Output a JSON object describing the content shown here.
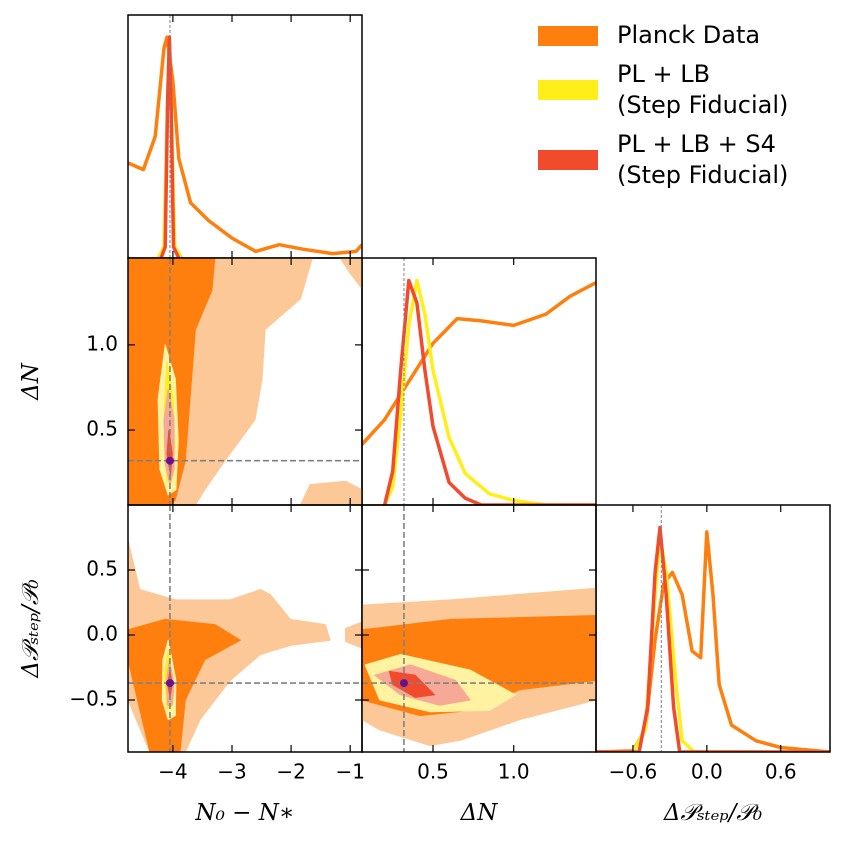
{
  "chart_data": {
    "type": "corner",
    "legend": "upper right",
    "density_ylim": [
      0,
      1.1
    ],
    "fiducial_color": "#6a0f8e",
    "series": [
      {
        "name": "Planck Data",
        "color": "#ff7f0e",
        "light_color": "#fdc898"
      },
      {
        "name": "PL + LB\n(Step Fiducial)",
        "color": "#ffee1a",
        "light_color": "#fff2a0"
      },
      {
        "name": "PL + LB + S4\n(Step Fiducial)",
        "color": "#f24a2d",
        "light_color": "#f6a996"
      }
    ],
    "parameters": [
      {
        "label": "N₀ − N∗",
        "lim": [
          -4.76,
          -0.8
        ],
        "fiducial": -4.05,
        "xticks": [
          {
            "value": -4,
            "label": "−4"
          },
          {
            "value": -3,
            "label": "−3"
          },
          {
            "value": -2,
            "label": "−2"
          },
          {
            "value": -1,
            "label": "−1"
          }
        ]
      },
      {
        "label": "ΔN",
        "lim": [
          0.06,
          1.51
        ],
        "fiducial": 0.32,
        "xticks": [
          0.5,
          {
            "value": 1,
            "label": "1.0"
          }
        ],
        "yticks": [
          0.5,
          {
            "value": 1,
            "label": "1.0"
          }
        ]
      },
      {
        "label": "Δ𝒫ₛₜₑₚ/𝒫₀",
        "lim": [
          -0.9,
          1.0
        ],
        "fiducial": -0.37,
        "xticks": [
          {
            "value": -0.6,
            "label": "−0.6"
          },
          {
            "value": 0,
            "label": "0.0"
          },
          0.6
        ],
        "yticks": [
          0.5,
          {
            "value": 0,
            "label": "0.0"
          },
          {
            "value": -0.5,
            "label": "−0.5"
          }
        ]
      }
    ],
    "diagonals": [
      {
        "curves": [
          {
            "x": [
              -4.76,
              -4.5,
              -4.3,
              -4.15,
              -4.1,
              -4.0,
              -3.9,
              -3.7,
              -3.4,
              -3.0,
              -2.6,
              -2.2,
              -1.8,
              -1.3,
              -0.9,
              -0.8
            ],
            "y": [
              0.43,
              0.4,
              0.55,
              0.95,
              1.0,
              0.8,
              0.45,
              0.25,
              0.17,
              0.09,
              0.03,
              0.06,
              0.04,
              0.02,
              0.03,
              0.06
            ]
          },
          {
            "x": [
              -4.25,
              -4.15,
              -4.1,
              -4.06,
              -4.02,
              -3.97,
              -3.85
            ],
            "y": [
              0,
              0.05,
              0.6,
              1.0,
              0.6,
              0.05,
              0
            ]
          },
          {
            "x": [
              -4.2,
              -4.13,
              -4.09,
              -4.06,
              -4.03,
              -3.99,
              -3.9
            ],
            "y": [
              0,
              0.05,
              0.7,
              1.0,
              0.7,
              0.05,
              0
            ]
          }
        ]
      },
      {
        "curves": [
          {
            "x": [
              0.06,
              0.2,
              0.35,
              0.5,
              0.65,
              0.8,
              1.0,
              1.2,
              1.35,
              1.51
            ],
            "y": [
              0.27,
              0.38,
              0.55,
              0.72,
              0.83,
              0.82,
              0.8,
              0.85,
              0.93,
              0.99
            ]
          },
          {
            "x": [
              0.2,
              0.25,
              0.3,
              0.35,
              0.4,
              0.45,
              0.5,
              0.6,
              0.7,
              0.85,
              1.0,
              1.2,
              1.51
            ],
            "y": [
              0,
              0.08,
              0.4,
              0.8,
              1.0,
              0.85,
              0.6,
              0.3,
              0.14,
              0.05,
              0.02,
              0,
              0
            ]
          },
          {
            "x": [
              0.2,
              0.25,
              0.3,
              0.35,
              0.4,
              0.45,
              0.5,
              0.6,
              0.7,
              0.8,
              1.51
            ],
            "y": [
              0,
              0.15,
              0.6,
              1.0,
              0.9,
              0.6,
              0.35,
              0.1,
              0.03,
              0,
              0
            ]
          }
        ]
      },
      {
        "curves": [
          {
            "x": [
              -0.9,
              -0.6,
              -0.5,
              -0.42,
              -0.35,
              -0.28,
              -0.2,
              -0.12,
              -0.05,
              0.0,
              0.05,
              0.1,
              0.2,
              0.4,
              0.6,
              1.0
            ],
            "y": [
              0,
              0.005,
              0.1,
              0.5,
              0.75,
              0.8,
              0.7,
              0.45,
              0.42,
              0.98,
              0.7,
              0.3,
              0.12,
              0.05,
              0.02,
              0
            ]
          },
          {
            "x": [
              -0.9,
              -0.6,
              -0.5,
              -0.42,
              -0.38,
              -0.33,
              -0.25,
              -0.2,
              -0.1,
              1.0
            ],
            "y": [
              0,
              0,
              0.1,
              0.7,
              0.95,
              0.8,
              0.3,
              0.05,
              0,
              0
            ]
          },
          {
            "x": [
              -0.9,
              -0.55,
              -0.48,
              -0.42,
              -0.38,
              -0.33,
              -0.27,
              -0.22,
              1.0
            ],
            "y": [
              0,
              0,
              0.2,
              0.8,
              1.0,
              0.7,
              0.2,
              0,
              0
            ]
          }
        ]
      }
    ],
    "pairs": [
      {
        "params": [
          0,
          1
        ],
        "contours": [
          [
            [
              {
                "x": [
                  -4.76,
                  -1.64,
                  -1.84,
                  -2.44,
                  -2.49,
                  -2.61,
                  -3.12,
                  -3.46,
                  -3.62,
                  -4.76
                ],
                "y": [
                  1.51,
                  1.51,
                  1.27,
                  1.09,
                  0.8,
                  0.56,
                  0.32,
                  0.15,
                  0.06,
                  0.06
                ]
              },
              {
                "x": [
                  -1.17,
                  -0.8,
                  -0.8,
                  -1.0
                ],
                "y": [
                  1.51,
                  1.51,
                  1.33,
                  1.42
                ]
              },
              {
                "x": [
                  -1.84,
                  -1.68,
                  -1.08,
                  -0.8,
                  -0.8
                ],
                "y": [
                  0.06,
                  0.18,
                  0.2,
                  0.15,
                  0.06
                ]
              }
            ],
            [
              {
                "x": [
                  -4.76,
                  -3.29,
                  -3.34,
                  -3.62,
                  -3.71,
                  -3.79,
                  -3.96,
                  -4.05,
                  -4.76
                ],
                "y": [
                  1.51,
                  1.51,
                  1.32,
                  1.09,
                  0.68,
                  0.32,
                  0.09,
                  0.06,
                  0.06
                ]
              }
            ]
          ],
          [
            [
              {
                "x": [
                  -4.13,
                  -3.96,
                  -3.91,
                  -3.95,
                  -4.08,
                  -4.22,
                  -4.25
                ],
                "y": [
                  1.0,
                  0.8,
                  0.44,
                  0.15,
                  0.12,
                  0.27,
                  0.68
                ]
              }
            ],
            [
              {
                "x": [
                  -4.1,
                  -4.0,
                  -3.97,
                  -4.02,
                  -4.1,
                  -4.15
                ],
                "y": [
                  0.9,
                  0.7,
                  0.4,
                  0.2,
                  0.2,
                  0.6
                ]
              }
            ]
          ],
          [
            [
              {
                "x": [
                  -4.08,
                  -3.98,
                  -3.98,
                  -4.05,
                  -4.13,
                  -4.15
                ],
                "y": [
                  0.74,
                  0.56,
                  0.27,
                  0.18,
                  0.3,
                  0.56
                ]
              }
            ],
            [
              {
                "x": [
                  -4.07,
                  -4.01,
                  -4.04,
                  -4.1
                ],
                "y": [
                  0.5,
                  0.36,
                  0.24,
                  0.36
                ]
              }
            ]
          ]
        ]
      },
      {
        "params": [
          0,
          2
        ],
        "contours": [
          [
            [
              {
                "x": [
                  -4.76,
                  -4.56,
                  -3.96,
                  -3.03,
                  -2.52,
                  -2.35,
                  -2.01,
                  -1.42,
                  -1.34,
                  -2.01,
                  -2.52,
                  -3.03,
                  -3.54,
                  -3.79,
                  -4.39,
                  -4.76
                ],
                "y": [
                  0.73,
                  0.35,
                  0.27,
                  0.27,
                  0.35,
                  0.31,
                  0.12,
                  0.08,
                  -0.04,
                  -0.08,
                  -0.15,
                  -0.35,
                  -0.65,
                  -0.9,
                  -0.9,
                  -0.5
                ]
              },
              {
                "x": [
                  -1.08,
                  -0.8,
                  -0.8,
                  -1.08
                ],
                "y": [
                  0.05,
                  0.1,
                  -0.1,
                  -0.05
                ]
              }
            ],
            [
              {
                "x": [
                  -4.76,
                  -4.13,
                  -3.29,
                  -2.86,
                  -3.46,
                  -3.79,
                  -3.88,
                  -4.39,
                  -4.76
                ],
                "y": [
                  0.04,
                  0.12,
                  0.08,
                  -0.04,
                  -0.19,
                  -0.5,
                  -0.9,
                  -0.9,
                  -0.19
                ]
              }
            ]
          ],
          [
            [
              {
                "x": [
                  -4.08,
                  -3.95,
                  -3.96,
                  -4.08,
                  -4.18,
                  -4.17
                ],
                "y": [
                  -0.04,
                  -0.35,
                  -0.62,
                  -0.65,
                  -0.5,
                  -0.19
                ]
              }
            ],
            [
              {
                "x": [
                  -4.08,
                  -4.0,
                  -4.02,
                  -4.1,
                  -4.14
                ],
                "y": [
                  -0.12,
                  -0.35,
                  -0.55,
                  -0.57,
                  -0.3
                ]
              }
            ]
          ],
          [
            [
              {
                "x": [
                  -4.06,
                  -3.98,
                  -4.01,
                  -4.09,
                  -4.11
                ],
                "y": [
                  -0.19,
                  -0.38,
                  -0.54,
                  -0.54,
                  -0.35
                ]
              }
            ],
            [
              {
                "x": [
                  -4.05,
                  -4.01,
                  -4.05,
                  -4.09
                ],
                "y": [
                  -0.28,
                  -0.38,
                  -0.47,
                  -0.38
                ]
              }
            ]
          ]
        ]
      },
      {
        "params": [
          1,
          2
        ],
        "contours": [
          [
            [
              {
                "x": [
                  0.06,
                  0.61,
                  1.51,
                  1.51,
                  1.04,
                  0.67,
                  0.48,
                  0.17,
                  0.06
                ],
                "y": [
                  0.23,
                  0.27,
                  0.36,
                  -0.5,
                  -0.65,
                  -0.81,
                  -0.85,
                  -0.73,
                  -0.65
                ]
              }
            ],
            [
              {
                "x": [
                  0.06,
                  0.61,
                  1.51,
                  1.51,
                  1.04,
                  0.73,
                  0.42,
                  0.06
                ],
                "y": [
                  0.04,
                  0.12,
                  0.15,
                  -0.35,
                  -0.42,
                  -0.58,
                  -0.62,
                  -0.5
                ]
              }
            ]
          ],
          [
            [
              {
                "x": [
                  0.08,
                  0.3,
                  0.73,
                  1.01,
                  0.85,
                  0.48,
                  0.17
                ],
                "y": [
                  -0.23,
                  -0.15,
                  -0.27,
                  -0.46,
                  -0.58,
                  -0.59,
                  -0.5
                ]
              }
            ],
            [
              {
                "x": [
                  0.14,
                  0.36,
                  0.64,
                  0.73,
                  0.54,
                  0.3
                ],
                "y": [
                  -0.31,
                  -0.23,
                  -0.35,
                  -0.5,
                  -0.54,
                  -0.46
                ]
              }
            ]
          ],
          [
            [
              {
                "x": [
                  0.14,
                  0.36,
                  0.64,
                  0.73,
                  0.54,
                  0.3
                ],
                "y": [
                  -0.31,
                  -0.23,
                  -0.35,
                  -0.5,
                  -0.54,
                  -0.46
                ]
              }
            ],
            [
              {
                "x": [
                  0.23,
                  0.39,
                  0.51,
                  0.39,
                  0.25
                ],
                "y": [
                  -0.28,
                  -0.31,
                  -0.46,
                  -0.48,
                  -0.38
                ]
              }
            ]
          ]
        ]
      }
    ]
  }
}
